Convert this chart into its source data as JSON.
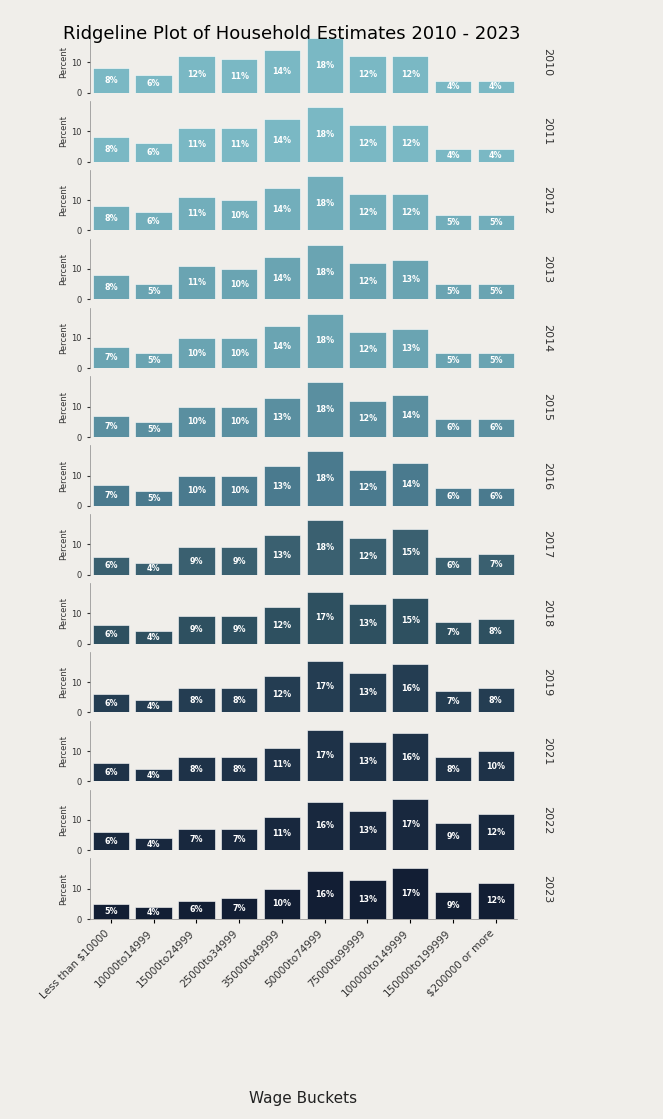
{
  "title": "Ridgeline Plot of Household Estimates 2010 - 2023",
  "xlabel": "Wage Buckets",
  "ylabel": "Percent",
  "categories": [
    "Less than $10000",
    "10000to14999",
    "15000to24999",
    "25000to34999",
    "35000to49999",
    "50000to74999",
    "75000to99999",
    "100000to149999",
    "150000to199999",
    "$200000 or more"
  ],
  "years": [
    "2010",
    "2011",
    "2012",
    "2013",
    "2014",
    "2015",
    "2016",
    "2017",
    "2018",
    "2019",
    "2021",
    "2022",
    "2023"
  ],
  "data": {
    "2010": [
      8,
      6,
      12,
      11,
      14,
      18,
      12,
      12,
      4,
      4
    ],
    "2011": [
      8,
      6,
      11,
      11,
      14,
      18,
      12,
      12,
      4,
      4
    ],
    "2012": [
      8,
      6,
      11,
      10,
      14,
      18,
      12,
      12,
      5,
      5
    ],
    "2013": [
      8,
      5,
      11,
      10,
      14,
      18,
      12,
      13,
      5,
      5
    ],
    "2014": [
      7,
      5,
      10,
      10,
      14,
      18,
      12,
      13,
      5,
      5
    ],
    "2015": [
      7,
      5,
      10,
      10,
      13,
      18,
      12,
      14,
      6,
      6
    ],
    "2016": [
      7,
      5,
      10,
      10,
      13,
      18,
      12,
      14,
      6,
      6
    ],
    "2017": [
      6,
      4,
      9,
      9,
      13,
      18,
      12,
      15,
      6,
      7
    ],
    "2018": [
      6,
      4,
      9,
      9,
      12,
      17,
      13,
      15,
      7,
      8
    ],
    "2019": [
      6,
      4,
      8,
      8,
      12,
      17,
      13,
      16,
      7,
      8
    ],
    "2021": [
      6,
      4,
      8,
      8,
      11,
      17,
      13,
      16,
      8,
      10
    ],
    "2022": [
      6,
      4,
      7,
      7,
      11,
      16,
      13,
      17,
      9,
      12
    ],
    "2023": [
      5,
      4,
      6,
      7,
      10,
      16,
      13,
      17,
      9,
      12
    ]
  },
  "colors": {
    "2010": "#7ab8c4",
    "2011": "#7ab8c4",
    "2012": "#72aebb",
    "2013": "#6aa4b2",
    "2014": "#6aa4b2",
    "2015": "#5a8fa0",
    "2016": "#4a7a8e",
    "2017": "#3a6070",
    "2018": "#2e5060",
    "2019": "#243d52",
    "2021": "#1e3248",
    "2022": "#18283e",
    "2023": "#121e34"
  },
  "background_color": "#f0eeea",
  "ylim": [
    0,
    20
  ],
  "bar_width": 0.85
}
